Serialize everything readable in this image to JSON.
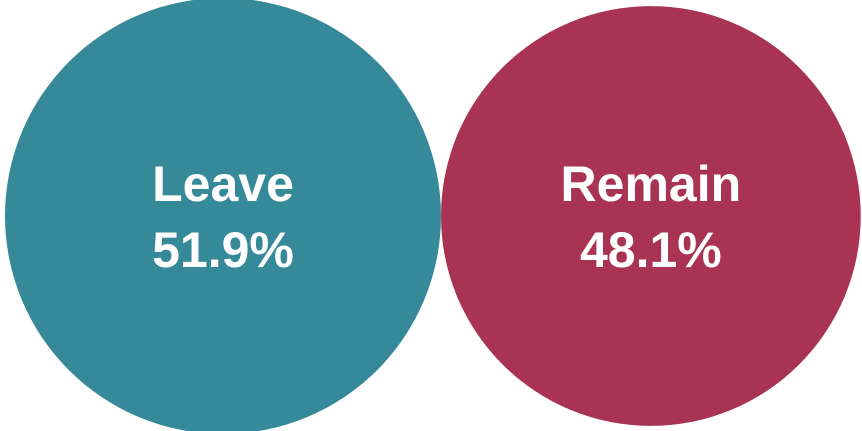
{
  "chart_data": {
    "type": "bubble",
    "categories": [
      "Leave",
      "Remain"
    ],
    "values": [
      51.9,
      48.1
    ],
    "value_labels": [
      "51.9%",
      "48.1%"
    ],
    "colors": [
      "#368998",
      "#a93352"
    ]
  }
}
